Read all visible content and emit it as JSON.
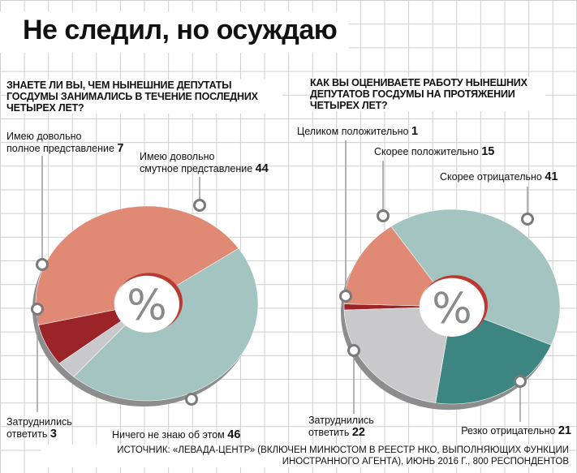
{
  "title": "Не следил, но осуждаю",
  "chart_data": [
    {
      "type": "pie",
      "title": "ЗНАЕТЕ ЛИ ВЫ, ЧЕМ НЫНЕШНИЕ ДЕПУТАТЫ ГОСДУМЫ ЗАНИМАЛИСЬ В ТЕЧЕНИЕ ПОСЛЕДНИХ ЧЕТЫРЕХ ЛЕТ?",
      "center_label": "%",
      "slices": [
        {
          "label": [
            "Имею довольно",
            "полное представление"
          ],
          "value": 7,
          "color": "#9b2428"
        },
        {
          "label": [
            "Имею довольно",
            "смутное представление"
          ],
          "value": 44,
          "color": "#e08a76"
        },
        {
          "label": [
            "Ничего не знаю об этом"
          ],
          "value": 46,
          "color": "#a4c4c2"
        },
        {
          "label": [
            "Затруднились",
            "ответить"
          ],
          "value": 3,
          "color": "#c9c9cb"
        }
      ]
    },
    {
      "type": "pie",
      "title": "КАК ВЫ ОЦЕНИВАЕТЕ РАБОТУ НЫНЕШНИХ ДЕПУТАТОВ ГОСДУМЫ НА ПРОТЯЖЕНИИ ЧЕТЫРЕХ ЛЕТ?",
      "center_label": "%",
      "slices": [
        {
          "label": [
            "Целиком положительно"
          ],
          "value": 1,
          "color": "#9b2428"
        },
        {
          "label": [
            "Скорее положительно"
          ],
          "value": 15,
          "color": "#e08a76"
        },
        {
          "label": [
            "Скорее отрицательно"
          ],
          "value": 41,
          "color": "#a4c4c2"
        },
        {
          "label": [
            "Резко отрицательно"
          ],
          "value": 21,
          "color": "#3d8580"
        },
        {
          "label": [
            "Затруднились",
            "ответить"
          ],
          "value": 22,
          "color": "#c9c9cb"
        }
      ]
    }
  ],
  "source": "ИСТОЧНИК: «ЛЕВАДА-ЦЕНТР» (ВКЛЮЧЕН МИНЮСТОМ В РЕЕСТР НКО, ВЫПОЛНЯЮЩИХ ФУНКЦИИ ИНОСТРАННОГО АГЕНТА), ИЮНЬ 2016 Г., 800 РЕСПОНДЕНТОВ"
}
